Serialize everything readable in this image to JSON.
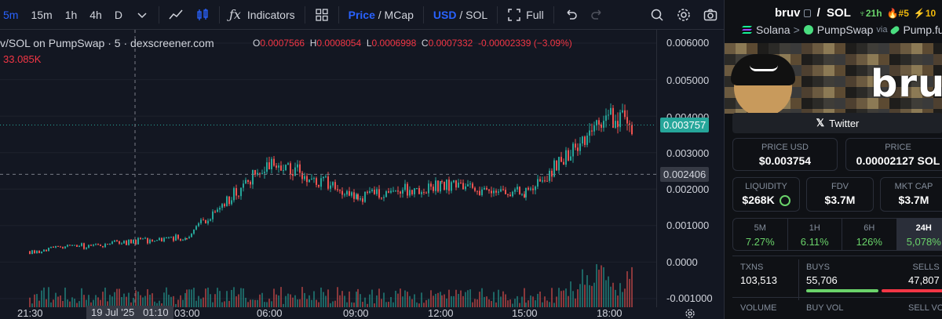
{
  "toolbar": {
    "timeframes": [
      "5m",
      "15m",
      "1h",
      "4h",
      "D"
    ],
    "active_timeframe": "5m",
    "indicators_label": "Indicators",
    "price_label": "Price",
    "mcap_label": "MCap",
    "usd_label": "USD",
    "sol_label": "SOL",
    "full_label": "Full"
  },
  "legend": {
    "pair_text": "v/SOL on PumpSwap · 5 · dexscreener.com",
    "o_key": "O",
    "o_val": "0.0007566",
    "h_key": "H",
    "h_val": "0.0008054",
    "l_key": "L",
    "l_val": "0.0006998",
    "c_key": "C",
    "c_val": "0.0007332",
    "change": "-0.00002339 (−3.09%)",
    "volume": "33.085K"
  },
  "price_axis": {
    "labels": [
      "0.006000",
      "0.005000",
      "0.004000",
      "0.003000",
      "0.002000",
      "0.001000",
      "0.0000",
      "-0.001000"
    ],
    "current_price": "0.003757",
    "crosshair_price": "0.002406",
    "current_color": "#26a69a",
    "crosshair_color": "#363a45"
  },
  "time_axis": {
    "labels": [
      "21:30",
      "03:00",
      "06:00",
      "09:00",
      "12:00",
      "15:00",
      "18:00"
    ],
    "crosshair_time": "19 Jul '25   01:10"
  },
  "chart_data": {
    "type": "candlestick",
    "ylim": [
      -0.001,
      0.006
    ],
    "colors": {
      "up": "#26a69a",
      "down": "#ef5350"
    },
    "segments": [
      {
        "from_time": "21:30",
        "to_time": "03:00",
        "price_from": 0.0003,
        "price_to": 0.0007
      },
      {
        "from_time": "03:00",
        "to_time": "06:00",
        "price_from": 0.0007,
        "price_to": 0.0028
      },
      {
        "from_time": "06:00",
        "to_time": "09:00",
        "price_from": 0.0028,
        "price_to": 0.0018
      },
      {
        "from_time": "09:00",
        "to_time": "12:00",
        "price_from": 0.0018,
        "price_to": 0.0021
      },
      {
        "from_time": "12:00",
        "to_time": "15:00",
        "price_from": 0.0021,
        "price_to": 0.0019
      },
      {
        "from_time": "15:00",
        "to_time": "18:00",
        "price_from": 0.0019,
        "price_to": 0.004
      },
      {
        "from_time": "18:00",
        "to_time": "18:30",
        "price_from": 0.004,
        "price_to": 0.003757
      }
    ]
  },
  "panel": {
    "token": "bruv",
    "quote": "SOL",
    "age": "21h",
    "rank": "#5",
    "boosts": "10",
    "chain": "Solana",
    "dex": "PumpSwap",
    "via_label": "via",
    "via_src": "Pump.fun",
    "banner_text": "bruv",
    "twitter_label": "Twitter",
    "price_usd_label": "PRICE USD",
    "price_usd": "$0.003754",
    "price_sol_label": "PRICE",
    "price_sol": "0.00002127 SOL",
    "liquidity_label": "LIQUIDITY",
    "liquidity": "$268K",
    "fdv_label": "FDV",
    "fdv": "$3.7M",
    "mcap_label": "MKT CAP",
    "mcap": "$3.7M",
    "tabs": [
      {
        "label": "5M",
        "value": "7.27%"
      },
      {
        "label": "1H",
        "value": "6.11%"
      },
      {
        "label": "6H",
        "value": "126%"
      },
      {
        "label": "24H",
        "value": "5,078%"
      }
    ],
    "txns_label": "TXNS",
    "txns": "103,513",
    "buys_label": "BUYS",
    "buys": "55,706",
    "sells_label": "SELLS",
    "sells": "47,807",
    "volume_label": "VOLUME",
    "buy_vol_label": "BUY VOL",
    "sell_vol_label": "SELL VOL"
  }
}
